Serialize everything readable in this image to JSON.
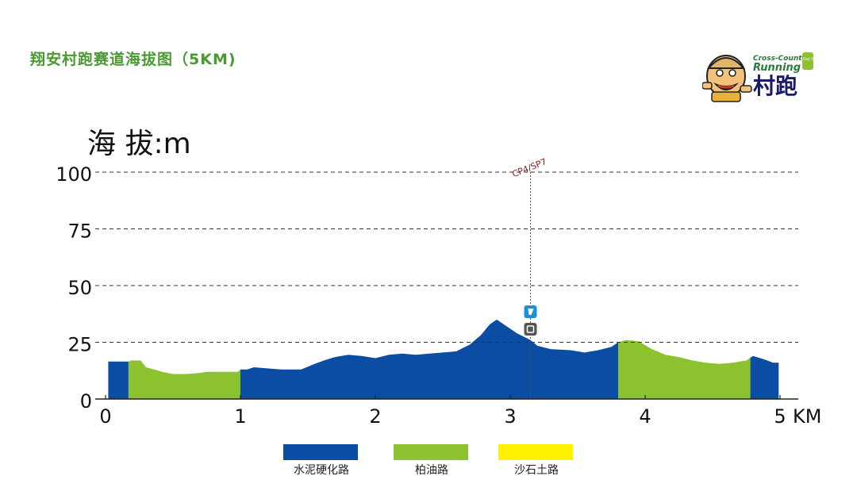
{
  "page": {
    "title": "翔安村跑赛道海拔图（5KM)"
  },
  "logo": {
    "top_text": "Cross-Country",
    "mid_text": "Running",
    "main_text": "村跑",
    "badge": "Go/ Go"
  },
  "colors": {
    "title": "#4a9a32",
    "cement": "#0a4da2",
    "asphalt": "#8cc12f",
    "gravel": "#fff200",
    "checkpoint": "#8b1e1e"
  },
  "chart_data": {
    "type": "area",
    "ylabel": "海 拔:m",
    "xlabel": "KM",
    "xlim": [
      0,
      5
    ],
    "ylim": [
      0,
      100
    ],
    "x_ticks": [
      "0",
      "1",
      "2",
      "3",
      "4",
      "5"
    ],
    "y_ticks": [
      "0",
      "25",
      "50",
      "75",
      "100"
    ],
    "grid": "dashed horizontal",
    "profile": [
      [
        0.02,
        16.5
      ],
      [
        0.17,
        16.5
      ],
      [
        0.19,
        17
      ],
      [
        0.26,
        17
      ],
      [
        0.3,
        14
      ],
      [
        0.36,
        13
      ],
      [
        0.42,
        12
      ],
      [
        0.5,
        11
      ],
      [
        0.6,
        11
      ],
      [
        0.7,
        11.5
      ],
      [
        0.75,
        12
      ],
      [
        0.85,
        12
      ],
      [
        0.98,
        12
      ],
      [
        1.0,
        13
      ],
      [
        1.05,
        13
      ],
      [
        1.1,
        14
      ],
      [
        1.2,
        13.5
      ],
      [
        1.3,
        13
      ],
      [
        1.45,
        13
      ],
      [
        1.55,
        15.5
      ],
      [
        1.62,
        17
      ],
      [
        1.7,
        18.5
      ],
      [
        1.8,
        19.5
      ],
      [
        1.9,
        19
      ],
      [
        2.0,
        18
      ],
      [
        2.1,
        19.5
      ],
      [
        2.2,
        20
      ],
      [
        2.3,
        19.5
      ],
      [
        2.4,
        20
      ],
      [
        2.5,
        20.5
      ],
      [
        2.6,
        21
      ],
      [
        2.7,
        24
      ],
      [
        2.78,
        28
      ],
      [
        2.85,
        33
      ],
      [
        2.9,
        35
      ],
      [
        2.95,
        33
      ],
      [
        3.05,
        29
      ],
      [
        3.15,
        26
      ],
      [
        3.2,
        23.5
      ],
      [
        3.3,
        22
      ],
      [
        3.45,
        21.5
      ],
      [
        3.55,
        20.5
      ],
      [
        3.65,
        21.5
      ],
      [
        3.75,
        23
      ],
      [
        3.8,
        25
      ],
      [
        3.86,
        26
      ],
      [
        3.95,
        25.5
      ],
      [
        4.05,
        22
      ],
      [
        4.15,
        19.5
      ],
      [
        4.25,
        18.5
      ],
      [
        4.35,
        17
      ],
      [
        4.45,
        16
      ],
      [
        4.55,
        15.5
      ],
      [
        4.65,
        16
      ],
      [
        4.75,
        17
      ],
      [
        4.8,
        19
      ],
      [
        4.88,
        17.5
      ],
      [
        4.95,
        16
      ],
      [
        4.99,
        16
      ]
    ],
    "segments": [
      {
        "surface": "cement",
        "from": 0.0,
        "to": 0.17
      },
      {
        "surface": "asphalt",
        "from": 0.17,
        "to": 1.0
      },
      {
        "surface": "cement",
        "from": 1.0,
        "to": 3.8
      },
      {
        "surface": "asphalt",
        "from": 3.8,
        "to": 4.78
      },
      {
        "surface": "cement",
        "from": 4.78,
        "to": 5.0
      }
    ],
    "checkpoint": {
      "label": "CP4/SP7",
      "x": 3.15,
      "icons": [
        "water-station-icon",
        "medical-station-icon"
      ]
    },
    "legend": [
      {
        "label": "水泥硬化路",
        "color": "#0a4da2"
      },
      {
        "label": "柏油路",
        "color": "#8cc12f"
      },
      {
        "label": "沙石土路",
        "color": "#fff200"
      }
    ]
  }
}
